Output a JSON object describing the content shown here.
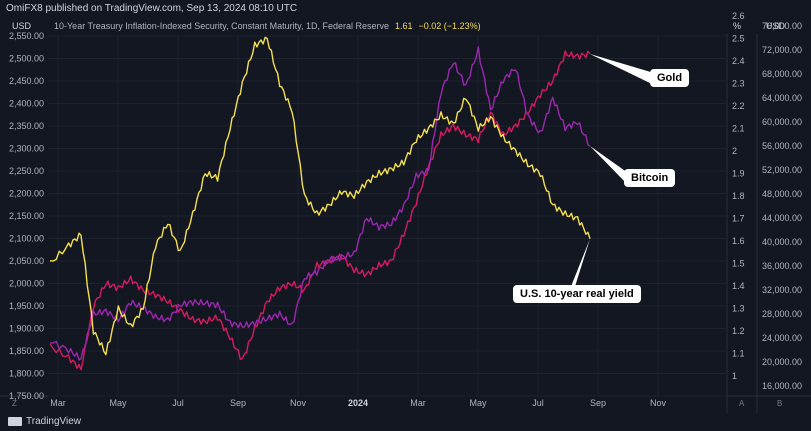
{
  "header": {
    "publisher": "OmiFX8 published on TradingView.com, Sep 13, 2024 08:10 UTC",
    "unit_left": "USD",
    "legend_name": "10-Year Treasury Inflation-Indexed Security, Constant Maturity, 1D, Federal Reserve",
    "legend_value": "1.61",
    "legend_change": "−0.02 (−1.23%)",
    "unit_mid": "%",
    "unit_right": "USD"
  },
  "footer": {
    "brand": "TradingView"
  },
  "colors": {
    "gold": "#d81b60",
    "bitcoin": "#9c27b0",
    "yield": "#f5e050",
    "background": "#131722"
  },
  "chart_data": {
    "type": "line",
    "x_ticks": [
      "Mar",
      "May",
      "Jul",
      "Sep",
      "Nov",
      "2024",
      "Mar",
      "May",
      "Jul",
      "Sep",
      "Nov"
    ],
    "axes": {
      "left_usd": {
        "ticks": [
          "2,550.00",
          "2,500.00",
          "2,450.00",
          "2,400.00",
          "2,350.00",
          "2,300.00",
          "2,250.00",
          "2,200.00",
          "2,150.00",
          "2,100.00",
          "2,050.00",
          "2,000.00",
          "1,950.00",
          "1,900.00",
          "1,850.00",
          "1,800.00",
          "1,750.00"
        ],
        "range": [
          1750,
          2550
        ]
      },
      "mid_pct": {
        "ticks": [
          "2.6",
          "2.5",
          "2.4",
          "2.3",
          "2.2",
          "2.1",
          "2",
          "1.9",
          "1.8",
          "1.7",
          "1.6",
          "1.5",
          "1.4",
          "1.3",
          "1.2",
          "1.1",
          "1"
        ],
        "range": [
          1.0,
          2.6
        ]
      },
      "right_usd": {
        "ticks": [
          "76,000.00",
          "72,000.00",
          "68,000.00",
          "64,000.00",
          "60,000.00",
          "56,000.00",
          "52,000.00",
          "48,000.00",
          "44,000.00",
          "40,000.00",
          "36,000.00",
          "32,000.00",
          "28,000.00",
          "24,000.00",
          "20,000.00",
          "16,000.00"
        ],
        "range": [
          16000,
          76000
        ]
      }
    },
    "series": [
      {
        "name": "Gold",
        "axis": "left_usd",
        "points": [
          [
            0,
            1860
          ],
          [
            0.6,
            1835
          ],
          [
            1,
            1810
          ],
          [
            1.4,
            1950
          ],
          [
            1.8,
            2000
          ],
          [
            2.2,
            1990
          ],
          [
            2.6,
            2010
          ],
          [
            3,
            1985
          ],
          [
            3.4,
            1975
          ],
          [
            3.8,
            1960
          ],
          [
            4.2,
            1940
          ],
          [
            4.6,
            1920
          ],
          [
            5,
            1915
          ],
          [
            5.4,
            1925
          ],
          [
            5.8,
            1880
          ],
          [
            6.2,
            1830
          ],
          [
            6.6,
            1900
          ],
          [
            7,
            1960
          ],
          [
            7.4,
            1990
          ],
          [
            7.8,
            2000
          ],
          [
            8.2,
            1985
          ],
          [
            8.6,
            2040
          ],
          [
            9,
            2050
          ],
          [
            9.4,
            2060
          ],
          [
            9.8,
            2030
          ],
          [
            10.2,
            2020
          ],
          [
            10.6,
            2040
          ],
          [
            11,
            2050
          ],
          [
            11.4,
            2110
          ],
          [
            11.8,
            2180
          ],
          [
            12.2,
            2260
          ],
          [
            12.6,
            2330
          ],
          [
            13,
            2350
          ],
          [
            13.4,
            2330
          ],
          [
            13.8,
            2320
          ],
          [
            14.2,
            2380
          ],
          [
            14.6,
            2330
          ],
          [
            15,
            2350
          ],
          [
            15.4,
            2380
          ],
          [
            15.8,
            2420
          ],
          [
            16.2,
            2450
          ],
          [
            16.6,
            2510
          ],
          [
            17,
            2505
          ],
          [
            17.4,
            2510
          ]
        ]
      },
      {
        "name": "Bitcoin",
        "axis": "right_usd",
        "points": [
          [
            0,
            23500
          ],
          [
            0.6,
            22000
          ],
          [
            1,
            20500
          ],
          [
            1.4,
            28000
          ],
          [
            1.8,
            28500
          ],
          [
            2.2,
            27000
          ],
          [
            2.6,
            30000
          ],
          [
            3,
            29000
          ],
          [
            3.4,
            27500
          ],
          [
            3.8,
            27000
          ],
          [
            4.2,
            29500
          ],
          [
            4.6,
            30000
          ],
          [
            5,
            29800
          ],
          [
            5.4,
            29500
          ],
          [
            5.8,
            26500
          ],
          [
            6.2,
            26000
          ],
          [
            6.6,
            26500
          ],
          [
            7,
            27200
          ],
          [
            7.4,
            28000
          ],
          [
            7.8,
            26000
          ],
          [
            8.2,
            34000
          ],
          [
            8.6,
            35000
          ],
          [
            9,
            37000
          ],
          [
            9.4,
            37500
          ],
          [
            9.8,
            38000
          ],
          [
            10.2,
            44000
          ],
          [
            10.6,
            42500
          ],
          [
            11,
            43000
          ],
          [
            11.4,
            46000
          ],
          [
            11.8,
            51000
          ],
          [
            12.2,
            52000
          ],
          [
            12.6,
            65000
          ],
          [
            13,
            70000
          ],
          [
            13.4,
            66000
          ],
          [
            13.8,
            72000
          ],
          [
            14.2,
            62000
          ],
          [
            14.6,
            67000
          ],
          [
            15,
            69000
          ],
          [
            15.4,
            61000
          ],
          [
            15.8,
            58000
          ],
          [
            16.2,
            64000
          ],
          [
            16.6,
            59000
          ],
          [
            17,
            60000
          ],
          [
            17.4,
            56000
          ]
        ]
      },
      {
        "name": "U.S. 10-year real yield",
        "axis": "mid_pct",
        "points": [
          [
            0,
            1.5
          ],
          [
            0.6,
            1.58
          ],
          [
            1,
            1.63
          ],
          [
            1.4,
            1.2
          ],
          [
            1.8,
            1.1
          ],
          [
            2.2,
            1.3
          ],
          [
            2.6,
            1.22
          ],
          [
            3,
            1.3
          ],
          [
            3.4,
            1.58
          ],
          [
            3.8,
            1.68
          ],
          [
            4.2,
            1.55
          ],
          [
            4.6,
            1.72
          ],
          [
            5,
            1.9
          ],
          [
            5.4,
            1.88
          ],
          [
            5.8,
            2.1
          ],
          [
            6.2,
            2.3
          ],
          [
            6.6,
            2.47
          ],
          [
            7,
            2.5
          ],
          [
            7.4,
            2.3
          ],
          [
            7.8,
            2.18
          ],
          [
            8.2,
            1.8
          ],
          [
            8.6,
            1.72
          ],
          [
            9,
            1.76
          ],
          [
            9.4,
            1.82
          ],
          [
            9.8,
            1.8
          ],
          [
            10.2,
            1.86
          ],
          [
            10.6,
            1.9
          ],
          [
            11,
            1.92
          ],
          [
            11.4,
            1.95
          ],
          [
            11.8,
            2.05
          ],
          [
            12.2,
            2.1
          ],
          [
            12.6,
            2.16
          ],
          [
            13,
            2.12
          ],
          [
            13.4,
            2.24
          ],
          [
            13.8,
            2.1
          ],
          [
            14.2,
            2.15
          ],
          [
            14.6,
            2.06
          ],
          [
            15,
            2.0
          ],
          [
            15.4,
            1.94
          ],
          [
            15.8,
            1.9
          ],
          [
            16.2,
            1.76
          ],
          [
            16.6,
            1.72
          ],
          [
            17,
            1.7
          ],
          [
            17.4,
            1.61
          ]
        ]
      }
    ],
    "annotations": [
      {
        "id": "gold",
        "text": "Gold"
      },
      {
        "id": "bitcoin",
        "text": "Bitcoin"
      },
      {
        "id": "yield",
        "text": "U.S. 10-year real yield"
      }
    ],
    "grid": true,
    "x_axis_corner_left": "Z",
    "x_axis_corner_mid": "A",
    "x_axis_corner_right": "B"
  }
}
